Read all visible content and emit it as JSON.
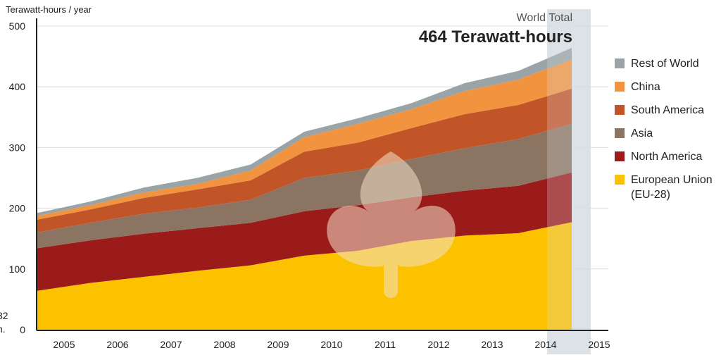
{
  "chart_data": {
    "type": "area",
    "stacked": true,
    "ylabel": "Terawatt-hours / year",
    "ylim": [
      0,
      500
    ],
    "yticks": [
      "0",
      "100",
      "200",
      "300",
      "400",
      "500"
    ],
    "categories": [
      "2005",
      "2006",
      "2007",
      "2008",
      "2009",
      "2010",
      "2011",
      "2012",
      "2013",
      "2014",
      "2015"
    ],
    "grid": true,
    "highlight_category": "2015",
    "series": [
      {
        "name": "European Union (EU-28)",
        "name_lines": [
          "European Union",
          "(EU-28)"
        ],
        "color": "#fcc200",
        "values": [
          64,
          77,
          87,
          97,
          106,
          122,
          130,
          146,
          155,
          159,
          177
        ]
      },
      {
        "name": "North America",
        "color": "#9b1b1b",
        "values": [
          70,
          70,
          71,
          70,
          70,
          73,
          75,
          72,
          74,
          78,
          82
        ]
      },
      {
        "name": "Asia",
        "color": "#8c7462",
        "values": [
          26,
          29,
          33,
          34,
          38,
          55,
          57,
          63,
          70,
          77,
          80
        ]
      },
      {
        "name": "South America",
        "color": "#c25528",
        "values": [
          21,
          22,
          26,
          30,
          32,
          43,
          46,
          51,
          56,
          56,
          58
        ]
      },
      {
        "name": "China",
        "color": "#f29340",
        "values": [
          6,
          7,
          9,
          9,
          16,
          24,
          31,
          31,
          38,
          42,
          48
        ]
      },
      {
        "name": "Rest of World",
        "color": "#9aa3a6",
        "values": [
          5,
          6,
          8,
          10,
          10,
          9,
          9,
          10,
          13,
          14,
          19
        ]
      }
    ],
    "legend_order": [
      "Rest of World",
      "China",
      "South America",
      "Asia",
      "North America",
      "European Union (EU-28)"
    ],
    "legend_position": "right",
    "annotation": {
      "label": "World Total",
      "value": "464 Terawatt-hours"
    },
    "watermark": "leaf-logo",
    "cut_text_left": [
      "32",
      "n."
    ]
  }
}
